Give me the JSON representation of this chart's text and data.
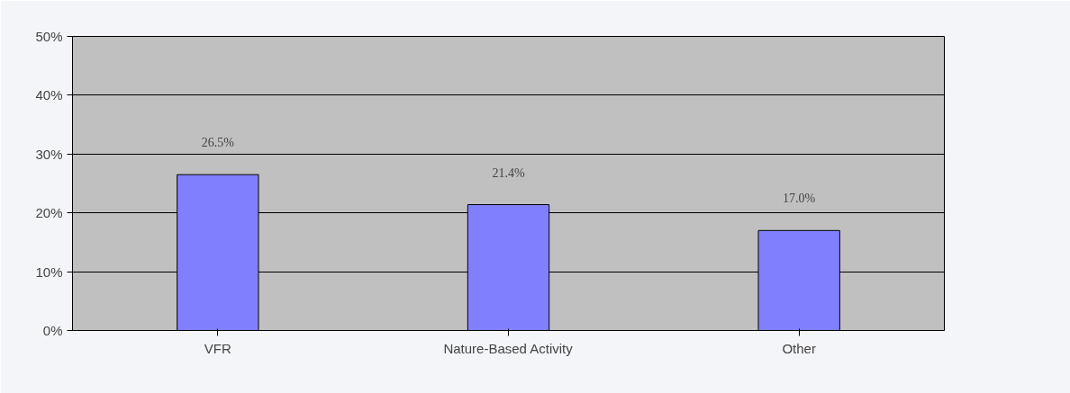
{
  "chart_data": {
    "type": "bar",
    "categories": [
      "VFR",
      "Nature-Based Activity",
      "Other"
    ],
    "values": [
      26.5,
      21.4,
      17.0
    ],
    "value_labels": [
      "26.5%",
      "21.4%",
      "17.0%"
    ],
    "color": "#8080ff",
    "ylim": [
      0,
      50
    ],
    "yticks": [
      {
        "value": 0,
        "label": "0%"
      },
      {
        "value": 10,
        "label": "10%"
      },
      {
        "value": 20,
        "label": "20%"
      },
      {
        "value": 30,
        "label": "30%"
      },
      {
        "value": 40,
        "label": "40%"
      },
      {
        "value": 50,
        "label": "50%"
      }
    ],
    "grid": "y"
  }
}
